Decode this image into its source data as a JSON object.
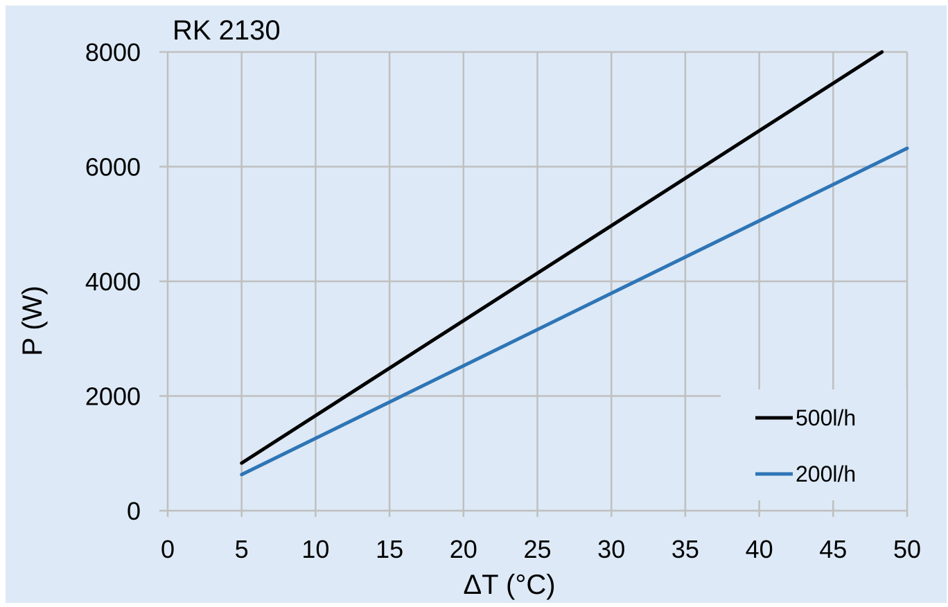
{
  "chart_data": {
    "type": "line",
    "title": "RK 2130",
    "xlabel": "ΔT (°C)",
    "ylabel": "P (W)",
    "xlim": [
      0,
      50
    ],
    "ylim": [
      0,
      8000
    ],
    "x_ticks": [
      "0",
      "5",
      "10",
      "15",
      "20",
      "25",
      "30",
      "35",
      "40",
      "45",
      "50"
    ],
    "y_ticks": [
      "0",
      "2000",
      "4000",
      "6000",
      "8000"
    ],
    "grid": true,
    "legend_position": "bottom-right",
    "background_color": "#dde9f6",
    "grid_color": "#bfbfbf",
    "series": [
      {
        "name": "500l/h",
        "color": "#000000",
        "x": [
          5,
          48.3
        ],
        "y": [
          830,
          8000
        ]
      },
      {
        "name": "200l/h",
        "color": "#2e75b6",
        "x": [
          5,
          50
        ],
        "y": [
          630,
          6320
        ]
      }
    ]
  }
}
